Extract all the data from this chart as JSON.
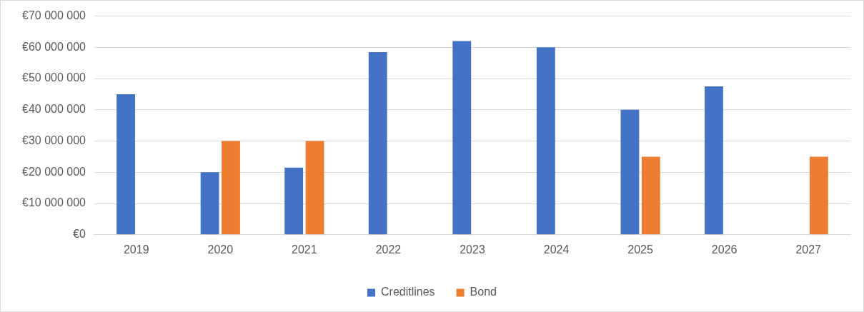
{
  "chart_data": {
    "type": "bar",
    "categories": [
      "2019",
      "2020",
      "2021",
      "2022",
      "2023",
      "2024",
      "2025",
      "2026",
      "2027"
    ],
    "series": [
      {
        "name": "Creditlines",
        "color": "#4472c4",
        "values": [
          45000000,
          20000000,
          21500000,
          58500000,
          62000000,
          60000000,
          40000000,
          47500000,
          null
        ]
      },
      {
        "name": "Bond",
        "color": "#ed7d31",
        "values": [
          null,
          30000000,
          30000000,
          null,
          null,
          null,
          25000000,
          null,
          25000000
        ]
      }
    ],
    "ylim": [
      0,
      70000000
    ],
    "yticks": [
      {
        "value": 0,
        "label": "€0"
      },
      {
        "value": 10000000,
        "label": "€10 000 000"
      },
      {
        "value": 20000000,
        "label": "€20 000 000"
      },
      {
        "value": 30000000,
        "label": "€30 000 000"
      },
      {
        "value": 40000000,
        "label": "€40 000 000"
      },
      {
        "value": 50000000,
        "label": "€50 000 000"
      },
      {
        "value": 60000000,
        "label": "€60 000 000"
      },
      {
        "value": 70000000,
        "label": "€70 000 000"
      }
    ],
    "grid": "y",
    "legend": "bottom"
  }
}
